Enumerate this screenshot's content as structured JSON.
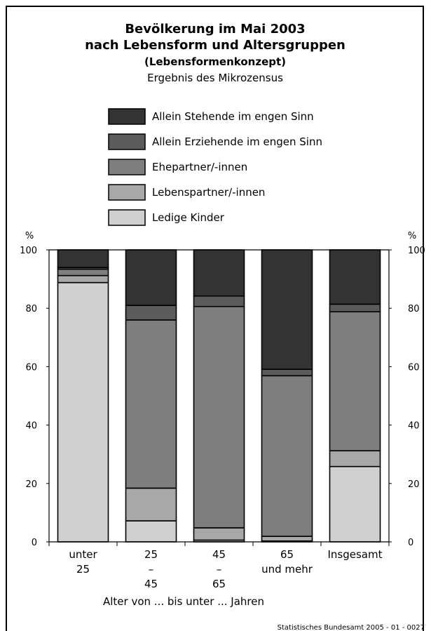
{
  "chart_data": {
    "type": "bar",
    "stacked": true,
    "orientation": "vertical",
    "title": "Bevölkerung im Mai 2003",
    "title_line2": "nach Lebensform und Altersgruppen",
    "subtitle": "(Lebensformenkonzept)",
    "subtitle2": "Ergebnis des Mikrozensus",
    "xlabel": "Alter von ... bis unter ... Jahren",
    "ylabel_left": "%",
    "ylabel_right": "%",
    "ylim": [
      0,
      100
    ],
    "yticks": [
      0,
      20,
      40,
      60,
      80,
      100
    ],
    "grid": false,
    "legend_position": "top",
    "categories": [
      [
        "unter",
        "25"
      ],
      [
        "25",
        "–",
        "45"
      ],
      [
        "45",
        "–",
        "65"
      ],
      [
        "65",
        "und mehr"
      ],
      [
        "Insgesamt"
      ]
    ],
    "series": [
      {
        "name": "Ledige Kinder",
        "color": "#d0d0d0",
        "values": [
          88.8,
          7.2,
          0.6,
          0.3,
          25.8
        ]
      },
      {
        "name": "Lebenspartner/-innen",
        "color": "#a8a8a8",
        "values": [
          2.4,
          11.2,
          4.2,
          1.6,
          5.4
        ]
      },
      {
        "name": "Ehepartner/-innen",
        "color": "#7e7e7e",
        "values": [
          2.2,
          57.6,
          75.8,
          55.0,
          47.6
        ]
      },
      {
        "name": "Allein Erziehende im engen Sinn",
        "color": "#5b5b5b",
        "values": [
          0.6,
          5.0,
          3.6,
          2.2,
          2.6
        ]
      },
      {
        "name": "Allein Stehende im engen Sinn",
        "color": "#333333",
        "values": [
          6.0,
          19.0,
          15.8,
          40.9,
          18.6
        ]
      }
    ],
    "legend_order": [
      "Allein Stehende im engen Sinn",
      "Allein Erziehende im engen Sinn",
      "Ehepartner/-innen",
      "Lebenspartner/-innen",
      "Ledige Kinder"
    ]
  },
  "source": "Statistisches Bundesamt 2005 - 01 - 0027"
}
